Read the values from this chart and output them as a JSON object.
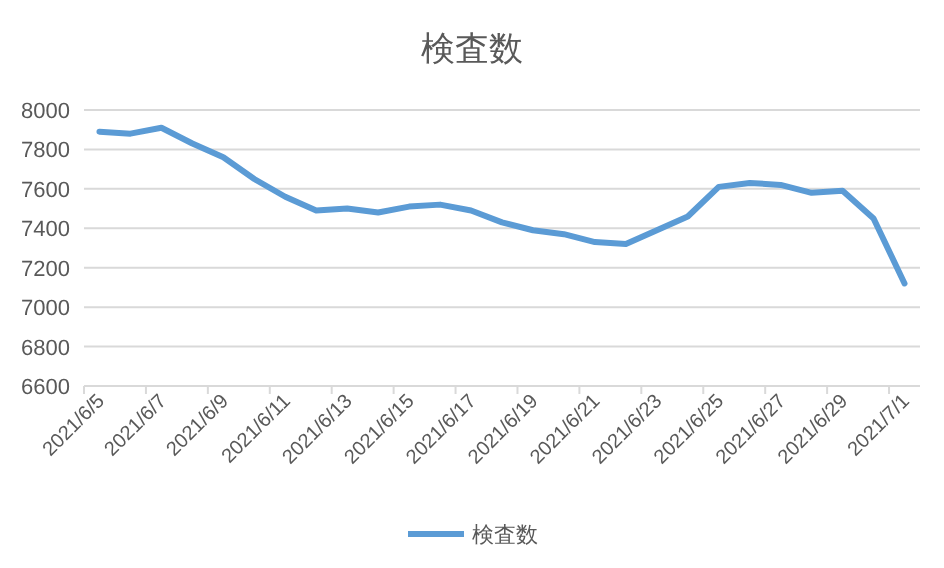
{
  "chart_data": {
    "type": "line",
    "title": "検査数",
    "categories": [
      "2021/6/5",
      null,
      "2021/6/7",
      null,
      "2021/6/9",
      null,
      "2021/6/11",
      null,
      "2021/6/13",
      null,
      "2021/6/15",
      null,
      "2021/6/17",
      null,
      "2021/6/19",
      null,
      "2021/6/21",
      null,
      "2021/6/23",
      null,
      "2021/6/25",
      null,
      "2021/6/27",
      null,
      "2021/6/29",
      null,
      "2021/7/1"
    ],
    "series": [
      {
        "name": "検査数",
        "color": "#5b9bd5",
        "values": [
          7890,
          7880,
          7910,
          7830,
          7760,
          7650,
          7560,
          7490,
          7500,
          7480,
          7510,
          7520,
          7490,
          7430,
          7390,
          7370,
          7330,
          7320,
          7390,
          7460,
          7610,
          7630,
          7620,
          7580,
          7590,
          7450,
          7120
        ]
      }
    ],
    "ylim": [
      6600,
      8000
    ],
    "yticks": [
      6600,
      6800,
      7000,
      7200,
      7400,
      7600,
      7800,
      8000
    ],
    "grid": "y",
    "legend": "bottom",
    "marker": "none",
    "line_style": "solid"
  }
}
